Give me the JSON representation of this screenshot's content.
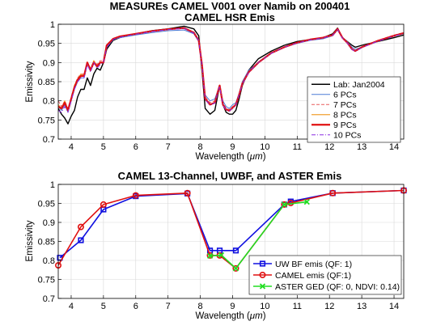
{
  "figure": {
    "title_line1": "MEASUREs CAMEL V001 over Namib on 200401"
  },
  "chart_data": [
    {
      "type": "line",
      "title": "CAMEL HSR Emis",
      "xlabel_text": "Wavelength (",
      "xlabel_unit": "μm",
      "xlabel_close": ")",
      "ylabel": "Emissivity",
      "xlim": [
        3.6,
        14.3
      ],
      "ylim": [
        0.7,
        1.0
      ],
      "xticks": [
        "4",
        "5",
        "6",
        "7",
        "8",
        "9",
        "10",
        "11",
        "12",
        "13",
        "14"
      ],
      "yticks": [
        "0.7",
        "0.75",
        "0.8",
        "0.85",
        "0.9",
        "0.95",
        "1"
      ],
      "grid": true,
      "legend_position": "lower-right",
      "series": [
        {
          "name": "Lab: Jan2004",
          "color": "#000000",
          "style": "solid",
          "width": 1.4,
          "x": [
            3.6,
            3.7,
            3.8,
            3.9,
            4.0,
            4.1,
            4.2,
            4.3,
            4.4,
            4.5,
            4.6,
            4.7,
            4.8,
            4.9,
            5.0,
            5.1,
            5.3,
            5.5,
            6.0,
            6.5,
            7.0,
            7.5,
            7.8,
            7.95,
            8.05,
            8.15,
            8.3,
            8.45,
            8.6,
            8.7,
            8.8,
            8.9,
            9.0,
            9.1,
            9.2,
            9.3,
            9.5,
            9.8,
            10.2,
            10.6,
            11.0,
            11.4,
            11.8,
            12.1,
            12.25,
            12.4,
            12.55,
            12.7,
            12.8,
            13.0,
            13.5,
            14.0,
            14.3
          ],
          "y": [
            0.78,
            0.765,
            0.755,
            0.74,
            0.76,
            0.775,
            0.81,
            0.83,
            0.83,
            0.86,
            0.84,
            0.87,
            0.885,
            0.88,
            0.9,
            0.935,
            0.958,
            0.965,
            0.975,
            0.983,
            0.988,
            0.995,
            0.988,
            0.97,
            0.88,
            0.78,
            0.765,
            0.775,
            0.84,
            0.79,
            0.77,
            0.765,
            0.765,
            0.775,
            0.805,
            0.84,
            0.88,
            0.91,
            0.93,
            0.945,
            0.955,
            0.96,
            0.965,
            0.975,
            0.99,
            0.965,
            0.955,
            0.945,
            0.94,
            0.945,
            0.955,
            0.965,
            0.972
          ]
        },
        {
          "name": "6 PCs",
          "color": "#4b7bd6",
          "style": "solid",
          "width": 1.0,
          "x": [
            3.6,
            3.7,
            3.8,
            3.9,
            4.0,
            4.1,
            4.2,
            4.3,
            4.4,
            4.5,
            4.6,
            4.7,
            4.8,
            4.9,
            5.0,
            5.1,
            5.3,
            5.5,
            6.0,
            6.5,
            7.0,
            7.5,
            7.8,
            7.95,
            8.05,
            8.15,
            8.3,
            8.45,
            8.6,
            8.7,
            8.8,
            8.9,
            9.0,
            9.1,
            9.2,
            9.3,
            9.5,
            9.8,
            10.2,
            10.6,
            11.0,
            11.4,
            11.8,
            12.1,
            12.25,
            12.4,
            12.55,
            12.7,
            12.8,
            13.0,
            13.5,
            14.0,
            14.3
          ],
          "y": [
            0.785,
            0.775,
            0.79,
            0.77,
            0.8,
            0.83,
            0.85,
            0.86,
            0.86,
            0.895,
            0.88,
            0.9,
            0.89,
            0.9,
            0.9,
            0.94,
            0.96,
            0.965,
            0.972,
            0.978,
            0.983,
            0.985,
            0.975,
            0.955,
            0.9,
            0.815,
            0.8,
            0.805,
            0.84,
            0.8,
            0.785,
            0.78,
            0.79,
            0.795,
            0.82,
            0.85,
            0.88,
            0.9,
            0.925,
            0.94,
            0.95,
            0.958,
            0.962,
            0.97,
            0.985,
            0.965,
            0.955,
            0.94,
            0.935,
            0.94,
            0.955,
            0.97,
            0.975
          ]
        },
        {
          "name": "7 PCs",
          "color": "#e85b5b",
          "style": "dashed",
          "width": 1.0,
          "x": [
            3.6,
            3.7,
            3.8,
            3.9,
            4.0,
            4.1,
            4.2,
            4.3,
            4.4,
            4.5,
            4.6,
            4.7,
            4.8,
            4.9,
            5.0,
            5.1,
            5.3,
            5.5,
            6.0,
            6.5,
            7.0,
            7.5,
            7.8,
            7.95,
            8.05,
            8.15,
            8.3,
            8.45,
            8.6,
            8.7,
            8.8,
            8.9,
            9.0,
            9.1,
            9.2,
            9.3,
            9.5,
            9.8,
            10.2,
            10.6,
            11.0,
            11.4,
            11.8,
            12.1,
            12.25,
            12.4,
            12.55,
            12.7,
            12.8,
            13.0,
            13.5,
            14.0,
            14.3
          ],
          "y": [
            0.8,
            0.785,
            0.8,
            0.78,
            0.81,
            0.84,
            0.86,
            0.87,
            0.87,
            0.9,
            0.885,
            0.905,
            0.895,
            0.905,
            0.905,
            0.945,
            0.962,
            0.968,
            0.975,
            0.982,
            0.986,
            0.99,
            0.98,
            0.96,
            0.895,
            0.81,
            0.795,
            0.8,
            0.84,
            0.795,
            0.78,
            0.777,
            0.785,
            0.79,
            0.815,
            0.845,
            0.875,
            0.9,
            0.925,
            0.94,
            0.952,
            0.96,
            0.965,
            0.972,
            0.988,
            0.965,
            0.952,
            0.935,
            0.93,
            0.94,
            0.958,
            0.972,
            0.978
          ]
        },
        {
          "name": "8 PCs",
          "color": "#f0a030",
          "style": "solid",
          "width": 1.2,
          "x": [
            3.6,
            3.7,
            3.8,
            3.9,
            4.0,
            4.1,
            4.2,
            4.3,
            4.4,
            4.5,
            4.6,
            4.7,
            4.8,
            4.9,
            5.0,
            5.1,
            5.3,
            5.5,
            6.0,
            6.5,
            7.0,
            7.5,
            7.8,
            7.95,
            8.05,
            8.15,
            8.3,
            8.45,
            8.6,
            8.7,
            8.8,
            8.9,
            9.0,
            9.1,
            9.2,
            9.3,
            9.5,
            9.8,
            10.2,
            10.6,
            11.0,
            11.4,
            11.8,
            12.1,
            12.25,
            12.4,
            12.55,
            12.7,
            12.8,
            13.0,
            13.5,
            14.0,
            14.3
          ],
          "y": [
            0.79,
            0.78,
            0.8,
            0.775,
            0.805,
            0.84,
            0.855,
            0.87,
            0.865,
            0.9,
            0.88,
            0.905,
            0.89,
            0.9,
            0.9,
            0.945,
            0.962,
            0.968,
            0.975,
            0.982,
            0.987,
            0.99,
            0.978,
            0.958,
            0.895,
            0.805,
            0.79,
            0.795,
            0.84,
            0.79,
            0.777,
            0.774,
            0.782,
            0.79,
            0.815,
            0.845,
            0.875,
            0.9,
            0.925,
            0.94,
            0.952,
            0.96,
            0.965,
            0.972,
            0.988,
            0.965,
            0.952,
            0.935,
            0.93,
            0.94,
            0.957,
            0.97,
            0.977
          ]
        },
        {
          "name": "9 PCs",
          "color": "#e01010",
          "style": "solid",
          "width": 2.2,
          "x": [
            3.6,
            3.7,
            3.8,
            3.9,
            4.0,
            4.1,
            4.2,
            4.3,
            4.4,
            4.5,
            4.6,
            4.7,
            4.8,
            4.9,
            5.0,
            5.1,
            5.3,
            5.5,
            6.0,
            6.5,
            7.0,
            7.5,
            7.8,
            7.95,
            8.05,
            8.15,
            8.3,
            8.45,
            8.6,
            8.7,
            8.8,
            8.9,
            9.0,
            9.1,
            9.2,
            9.3,
            9.5,
            9.8,
            10.2,
            10.6,
            11.0,
            11.4,
            11.8,
            12.1,
            12.25,
            12.4,
            12.55,
            12.7,
            12.8,
            13.0,
            13.5,
            14.0,
            14.3
          ],
          "y": [
            0.785,
            0.78,
            0.795,
            0.775,
            0.805,
            0.835,
            0.855,
            0.865,
            0.865,
            0.9,
            0.88,
            0.9,
            0.89,
            0.9,
            0.9,
            0.945,
            0.962,
            0.968,
            0.975,
            0.982,
            0.987,
            0.99,
            0.978,
            0.958,
            0.895,
            0.805,
            0.79,
            0.795,
            0.84,
            0.79,
            0.777,
            0.774,
            0.782,
            0.79,
            0.815,
            0.845,
            0.875,
            0.9,
            0.925,
            0.94,
            0.952,
            0.96,
            0.965,
            0.972,
            0.988,
            0.965,
            0.952,
            0.935,
            0.93,
            0.94,
            0.957,
            0.97,
            0.977
          ]
        },
        {
          "name": "10 PCs",
          "color": "#8a2be2",
          "style": "dashdot",
          "width": 1.0,
          "x": [
            3.6,
            3.7,
            3.8,
            3.9,
            4.0,
            4.1,
            4.2,
            4.3,
            4.4,
            4.5,
            4.6,
            4.7,
            4.8,
            4.9,
            5.0,
            5.1,
            5.3,
            5.5,
            6.0,
            6.5,
            7.0,
            7.5,
            7.8,
            7.95,
            8.05,
            8.15,
            8.3,
            8.45,
            8.6,
            8.7,
            8.8,
            8.9,
            9.0,
            9.1,
            9.2,
            9.3,
            9.5,
            9.8,
            10.2,
            10.6,
            11.0,
            11.4,
            11.8,
            12.1,
            12.25,
            12.4,
            12.55,
            12.7,
            12.8,
            13.0,
            13.5,
            14.0,
            14.3
          ],
          "y": [
            0.775,
            0.77,
            0.785,
            0.77,
            0.8,
            0.83,
            0.85,
            0.86,
            0.86,
            0.895,
            0.875,
            0.9,
            0.885,
            0.895,
            0.9,
            0.94,
            0.96,
            0.966,
            0.974,
            0.981,
            0.986,
            0.989,
            0.977,
            0.957,
            0.893,
            0.803,
            0.789,
            0.794,
            0.838,
            0.789,
            0.776,
            0.773,
            0.781,
            0.789,
            0.814,
            0.844,
            0.874,
            0.9,
            0.924,
            0.94,
            0.951,
            0.959,
            0.964,
            0.971,
            0.987,
            0.964,
            0.951,
            0.934,
            0.929,
            0.939,
            0.956,
            0.969,
            0.976
          ]
        }
      ]
    },
    {
      "type": "line",
      "title": "CAMEL 13-Channel, UWBF, and ASTER Emis",
      "xlabel_text": "Wavelength (",
      "xlabel_unit": "μm",
      "xlabel_close": ")",
      "ylabel": "Emissivity",
      "xlim": [
        3.6,
        14.3
      ],
      "ylim": [
        0.7,
        1.0
      ],
      "xticks": [
        "4",
        "5",
        "6",
        "7",
        "8",
        "9",
        "10",
        "11",
        "12",
        "13",
        "14"
      ],
      "yticks": [
        "0.7",
        "0.75",
        "0.8",
        "0.85",
        "0.9",
        "0.95",
        "1"
      ],
      "grid": true,
      "legend_position": "lower-right",
      "series": [
        {
          "name": "UW BF emis (QF: 1)",
          "color": "#1010e0",
          "marker": "square",
          "x": [
            3.65,
            4.3,
            5.0,
            6.0,
            7.6,
            8.3,
            8.6,
            9.1,
            10.6,
            10.8,
            12.1,
            14.3
          ],
          "y": [
            0.807,
            0.853,
            0.934,
            0.969,
            0.976,
            0.826,
            0.826,
            0.826,
            0.947,
            0.955,
            0.977,
            0.984
          ]
        },
        {
          "name": "CAMEL emis (QF:1)",
          "color": "#e01010",
          "marker": "circle",
          "x": [
            3.6,
            4.3,
            5.0,
            6.0,
            7.6,
            8.3,
            8.6,
            9.1,
            10.6,
            10.8,
            12.1,
            14.3
          ],
          "y": [
            0.787,
            0.888,
            0.947,
            0.971,
            0.977,
            0.813,
            0.813,
            0.779,
            0.947,
            0.951,
            0.977,
            0.984
          ]
        },
        {
          "name": "ASTER GED (QF: 0, NDVI: 0.14)",
          "color": "#22dd22",
          "marker": "x",
          "x": [
            8.3,
            8.65,
            9.1,
            10.6,
            11.3
          ],
          "y": [
            0.812,
            0.814,
            0.779,
            0.947,
            0.954
          ]
        }
      ]
    }
  ]
}
